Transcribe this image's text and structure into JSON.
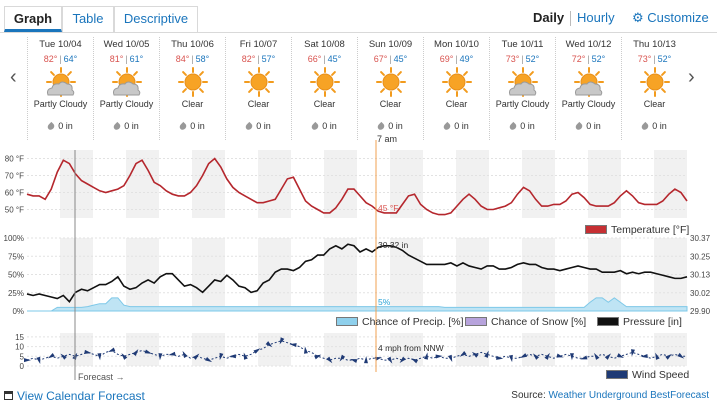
{
  "tabs": [
    {
      "label": "Graph",
      "active": true
    },
    {
      "label": "Table",
      "active": false
    },
    {
      "label": "Descriptive",
      "active": false
    }
  ],
  "view_toggle": {
    "daily": "Daily",
    "hourly": "Hourly",
    "customize": "Customize"
  },
  "days": [
    {
      "date": "Tue 10/04",
      "hi": "82°",
      "lo": "64°",
      "condition": "Partly Cloudy",
      "icon": "partly-cloudy-icon",
      "precip": "0 in"
    },
    {
      "date": "Wed 10/05",
      "hi": "81°",
      "lo": "61°",
      "condition": "Partly Cloudy",
      "icon": "partly-cloudy-icon",
      "precip": "0 in"
    },
    {
      "date": "Thu 10/06",
      "hi": "84°",
      "lo": "58°",
      "condition": "Clear",
      "icon": "sun-icon",
      "precip": "0 in"
    },
    {
      "date": "Fri 10/07",
      "hi": "82°",
      "lo": "57°",
      "condition": "Clear",
      "icon": "sun-icon",
      "precip": "0 in"
    },
    {
      "date": "Sat 10/08",
      "hi": "66°",
      "lo": "45°",
      "condition": "Clear",
      "icon": "sun-icon",
      "precip": "0 in"
    },
    {
      "date": "Sun 10/09",
      "hi": "67°",
      "lo": "45°",
      "condition": "Clear",
      "icon": "sun-icon",
      "precip": "0 in"
    },
    {
      "date": "Mon 10/10",
      "hi": "69°",
      "lo": "49°",
      "condition": "Clear",
      "icon": "sun-icon",
      "precip": "0 in"
    },
    {
      "date": "Tue 10/11",
      "hi": "73°",
      "lo": "52°",
      "condition": "Partly Cloudy",
      "icon": "partly-cloudy-icon",
      "precip": "0 in"
    },
    {
      "date": "Wed 10/12",
      "hi": "72°",
      "lo": "52°",
      "condition": "Partly Cloudy",
      "icon": "partly-cloudy-icon",
      "precip": "0 in"
    },
    {
      "date": "Thu 10/13",
      "hi": "73°",
      "lo": "52°",
      "condition": "Clear",
      "icon": "sun-icon",
      "precip": "0 in"
    }
  ],
  "chart_data": [
    {
      "type": "line",
      "yticks": [
        "80 °F",
        "70 °F",
        "60 °F",
        "50 °F"
      ],
      "ylim": [
        45,
        85
      ],
      "series": [
        {
          "name": "Temperature [°F]",
          "color": "#b5272d",
          "values": [
            59,
            58,
            58,
            56,
            62,
            72,
            79,
            77,
            71,
            67,
            65,
            63,
            61,
            60,
            61,
            62,
            64,
            70,
            77,
            79,
            73,
            66,
            64,
            61,
            59,
            58,
            58,
            60,
            64,
            70,
            77,
            80,
            75,
            68,
            63,
            60,
            58,
            56,
            54,
            54,
            55,
            56,
            62,
            68,
            69,
            62,
            55,
            52,
            50,
            48,
            48,
            51,
            56,
            62,
            62,
            58,
            54,
            52,
            49,
            48,
            48,
            48,
            53,
            58,
            59,
            53,
            50,
            48,
            47,
            47,
            48,
            52,
            56,
            59,
            56,
            52,
            50,
            50,
            51,
            52,
            54,
            59,
            63,
            61,
            56,
            52,
            52,
            53,
            53,
            55,
            59,
            60,
            57,
            53,
            52,
            52,
            52,
            54,
            58,
            61,
            58,
            54,
            53,
            53,
            53,
            55,
            59,
            62,
            60,
            55
          ]
        }
      ],
      "cursor_label": "45 °F"
    },
    {
      "type": "line",
      "yticks_left": [
        "100%",
        "75%",
        "50%",
        "25%",
        "0%"
      ],
      "yticks_right": [
        "30.37",
        "30.25",
        "30.13",
        "30.02",
        "29.90"
      ],
      "ylim_left": [
        0,
        100
      ],
      "ylim_right": [
        29.9,
        30.37
      ],
      "series": [
        {
          "name": "Chance of Precip. [%]",
          "color": "#7ec8e8",
          "values": [
            0,
            0,
            0,
            0,
            0,
            5,
            5,
            5,
            5,
            5,
            6,
            8,
            10,
            10,
            18,
            18,
            8,
            6,
            6,
            6,
            6,
            6,
            6,
            6,
            6,
            6,
            6,
            6,
            6,
            6,
            6,
            6,
            6,
            6,
            6,
            6,
            6,
            6,
            6,
            6,
            6,
            6,
            6,
            6,
            6,
            6,
            6,
            6,
            6,
            6,
            6,
            6,
            6,
            6,
            6,
            6,
            6,
            6,
            6,
            6,
            6,
            6,
            6,
            6,
            6,
            6,
            6,
            6,
            6,
            5,
            5,
            5,
            5,
            5,
            5,
            5,
            5,
            5,
            5,
            5,
            5,
            5,
            5,
            5,
            5,
            5,
            5,
            5,
            5,
            5,
            5,
            5,
            5,
            12,
            18,
            18,
            12,
            18,
            12,
            6,
            6,
            6,
            6,
            6,
            6,
            6,
            6,
            6,
            6,
            6
          ]
        },
        {
          "name": "Chance of Snow [%]",
          "color": "#b39ddb",
          "values": []
        },
        {
          "name": "Pressure [in]",
          "color": "#111111",
          "values": [
            30.01,
            30.0,
            30.01,
            30.0,
            29.99,
            29.98,
            30.0,
            29.96,
            30.02,
            30.04,
            30.03,
            30.05,
            30.07,
            30.07,
            30.09,
            30.12,
            30.06,
            30.04,
            30.05,
            30.08,
            30.1,
            30.08,
            30.12,
            30.14,
            30.14,
            30.1,
            30.06,
            30.07,
            30.05,
            30.02,
            30.06,
            30.1,
            30.09,
            30.13,
            30.1,
            30.06,
            30.05,
            30.02,
            30.03,
            30.08,
            30.1,
            30.15,
            30.17,
            30.17,
            30.16,
            30.18,
            30.22,
            30.23,
            30.26,
            30.26,
            30.3,
            30.32,
            30.3,
            30.33,
            30.32,
            30.28,
            30.3,
            30.28,
            30.31,
            30.32,
            30.32,
            30.31,
            30.29,
            30.26,
            30.24,
            30.22,
            30.2,
            30.2,
            30.2,
            30.2,
            30.21,
            30.19,
            30.21,
            30.19,
            30.18,
            30.17,
            30.19,
            30.19,
            30.17,
            30.17,
            30.18,
            30.2,
            30.21,
            30.2,
            30.2,
            30.18,
            30.17,
            30.17,
            30.16,
            30.17,
            30.18,
            30.19,
            30.18,
            30.17,
            30.17,
            30.15,
            30.15,
            30.15,
            30.16,
            30.14,
            30.15,
            30.14,
            30.15,
            30.15,
            30.14,
            30.13,
            30.12,
            30.11,
            30.11,
            30.12
          ]
        }
      ],
      "cursor_labels": [
        "30.32 in",
        "5%"
      ]
    },
    {
      "type": "line",
      "yticks": [
        "15",
        "10",
        "5",
        "0"
      ],
      "ylim": [
        0,
        17
      ],
      "series": [
        {
          "name": "Wind Speed",
          "color": "#1f3a75",
          "values": [
            3,
            4,
            3,
            4,
            5,
            4,
            5,
            6,
            5,
            6,
            7,
            6,
            5,
            7,
            8,
            6,
            5,
            6,
            7,
            8,
            7,
            6,
            5,
            6,
            6,
            5,
            6,
            4,
            5,
            4,
            3,
            4,
            5,
            4,
            5,
            6,
            5,
            6,
            8,
            9,
            11,
            12,
            13,
            12,
            11,
            10,
            8,
            7,
            5,
            4,
            3,
            4,
            4,
            3,
            3,
            4,
            3,
            4,
            4,
            3,
            3,
            4,
            3,
            4,
            3,
            4,
            5,
            4,
            5,
            4,
            4,
            5,
            6,
            5,
            6,
            7,
            6,
            5,
            4,
            5,
            4,
            4,
            5,
            6,
            5,
            6,
            5,
            4,
            5,
            6,
            5,
            4,
            4,
            5,
            5,
            6,
            5,
            4,
            5,
            6,
            7,
            6,
            5,
            4,
            5,
            6,
            5,
            6,
            5,
            5
          ]
        }
      ],
      "cursor_label": "4 mph from NNW"
    }
  ],
  "cursor_time_label": "7 am",
  "forecast_label": "Forecast →",
  "legends": {
    "temperature": "Temperature [°F]",
    "precip": "Chance of Precip. [%]",
    "snow": "Chance of Snow [%]",
    "pressure": "Pressure [in]",
    "wind": "Wind Speed"
  },
  "colors": {
    "accent": "#1a75bc",
    "temperature": "#b5272d",
    "precip": "#7ec8e8",
    "snow": "#b39ddb",
    "pressure": "#111111",
    "wind": "#1f3a75",
    "high": "#d9534f",
    "low": "#1a75bc"
  },
  "footer": {
    "calendar_link": "View Calendar Forecast",
    "source_prefix": "Source:",
    "source_link": "Weather Underground BestForecast"
  }
}
